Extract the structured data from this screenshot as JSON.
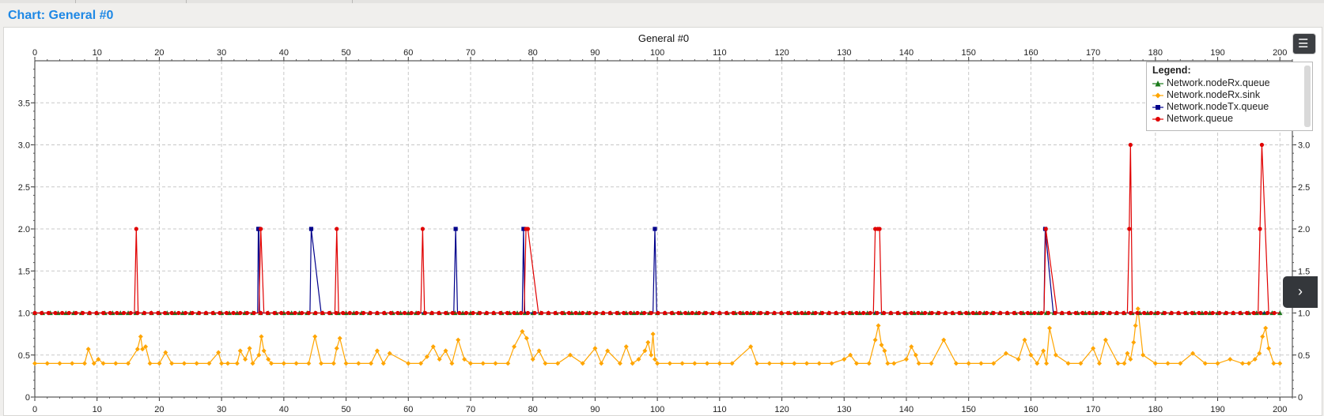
{
  "window": {
    "title": "Chart: General  #0"
  },
  "controls": {
    "legend_toggle_icon": "list-icon",
    "side_panel_icon": "chevron-right-icon"
  },
  "colors": {
    "rx_queue": "#1a7a1a",
    "rx_sink": "#ffa500",
    "tx_queue": "#00008b",
    "queue": "#e00000",
    "grid": "#c8c8c8"
  },
  "chart_data": {
    "type": "line",
    "title": "General  #0",
    "xlabel": "",
    "ylabel": "",
    "xlim": [
      0,
      202
    ],
    "ylim": [
      0,
      4
    ],
    "x_ticks": [
      0,
      10,
      20,
      30,
      40,
      50,
      60,
      70,
      80,
      90,
      100,
      110,
      120,
      130,
      140,
      150,
      160,
      170,
      180,
      190,
      200
    ],
    "y_ticks": [
      "0",
      "0.5",
      "1.0",
      "1.5",
      "2.0",
      "2.5",
      "3.0",
      "3.5"
    ],
    "grid": true,
    "legend_title": "Legend:",
    "legend_position": "top-right",
    "series": [
      {
        "name": "Network.nodeRx.queue",
        "marker": "triangle",
        "color": "#1a7a1a",
        "x": [
          0,
          200
        ],
        "y": [
          1.0,
          1.0
        ]
      },
      {
        "name": "Network.nodeRx.sink",
        "marker": "diamond",
        "color": "#ffa500",
        "x": [
          0,
          2,
          4,
          6,
          8,
          8.6,
          9.5,
          10.2,
          11,
          13,
          15,
          16.5,
          17,
          17.3,
          17.8,
          18.5,
          20,
          21,
          22,
          24,
          26,
          28,
          29.5,
          30,
          31,
          32.5,
          33,
          33.8,
          34.5,
          35,
          36,
          36.4,
          36.8,
          37.5,
          38,
          40,
          42,
          44,
          45,
          46,
          48,
          48.5,
          49,
          50,
          52,
          54,
          55,
          56,
          57,
          60,
          62,
          63,
          64,
          65,
          66,
          67,
          68,
          69,
          70,
          72,
          74,
          76,
          77,
          78.3,
          79,
          80,
          81,
          82,
          84,
          86,
          88,
          90,
          91,
          92,
          94,
          95,
          96,
          97,
          98,
          98.5,
          99,
          99.3,
          99.6,
          100,
          102,
          104,
          106,
          108,
          110,
          112,
          115,
          116,
          118,
          120,
          122,
          124,
          126,
          128,
          130,
          131,
          132,
          134,
          135,
          135.5,
          136,
          136.5,
          137,
          138,
          140,
          140.8,
          141.5,
          142,
          144,
          146,
          148,
          150,
          152,
          154,
          156,
          158,
          159,
          160,
          161,
          162,
          162.5,
          163,
          164,
          166,
          168,
          170,
          171,
          172,
          174,
          175,
          175.5,
          176,
          176.5,
          176.8,
          177.2,
          178,
          180,
          182,
          184,
          186,
          188,
          190,
          192,
          194,
          195,
          196,
          196.7,
          197.2,
          197.7,
          198.2,
          199,
          200
        ],
        "y": [
          0.4,
          0.4,
          0.4,
          0.4,
          0.4,
          0.57,
          0.4,
          0.45,
          0.4,
          0.4,
          0.4,
          0.57,
          0.72,
          0.57,
          0.6,
          0.4,
          0.4,
          0.53,
          0.4,
          0.4,
          0.4,
          0.4,
          0.53,
          0.4,
          0.4,
          0.4,
          0.55,
          0.45,
          0.58,
          0.4,
          0.5,
          0.72,
          0.55,
          0.45,
          0.4,
          0.4,
          0.4,
          0.4,
          0.72,
          0.4,
          0.4,
          0.58,
          0.7,
          0.4,
          0.4,
          0.4,
          0.55,
          0.4,
          0.52,
          0.4,
          0.4,
          0.48,
          0.6,
          0.45,
          0.55,
          0.4,
          0.68,
          0.45,
          0.4,
          0.4,
          0.4,
          0.4,
          0.6,
          0.78,
          0.7,
          0.45,
          0.55,
          0.4,
          0.4,
          0.5,
          0.4,
          0.58,
          0.4,
          0.55,
          0.4,
          0.6,
          0.4,
          0.45,
          0.55,
          0.65,
          0.5,
          0.75,
          0.45,
          0.4,
          0.4,
          0.4,
          0.4,
          0.4,
          0.4,
          0.4,
          0.6,
          0.4,
          0.4,
          0.4,
          0.4,
          0.4,
          0.4,
          0.4,
          0.45,
          0.5,
          0.4,
          0.4,
          0.68,
          0.85,
          0.62,
          0.55,
          0.4,
          0.4,
          0.45,
          0.6,
          0.5,
          0.4,
          0.4,
          0.68,
          0.4,
          0.4,
          0.4,
          0.4,
          0.52,
          0.45,
          0.68,
          0.5,
          0.4,
          0.55,
          0.4,
          0.82,
          0.5,
          0.4,
          0.4,
          0.58,
          0.4,
          0.68,
          0.4,
          0.4,
          0.52,
          0.45,
          0.65,
          0.85,
          1.05,
          0.5,
          0.4,
          0.4,
          0.4,
          0.52,
          0.4,
          0.4,
          0.45,
          0.4,
          0.4,
          0.45,
          0.52,
          0.72,
          0.82,
          0.58,
          0.4,
          0.4
        ]
      },
      {
        "name": "Network.nodeTx.queue",
        "marker": "square",
        "color": "#00008b",
        "x": [
          0,
          35.8,
          35.9,
          36.0,
          36.1,
          44.2,
          44.4,
          46.0,
          46.2,
          67.3,
          67.6,
          67.9,
          78.3,
          78.5,
          78.7,
          99.3,
          99.6,
          99.9,
          162.1,
          162.3,
          163.6,
          163.8,
          200
        ],
        "y": [
          1.0,
          1.0,
          2.0,
          2.0,
          1.0,
          1.0,
          2.0,
          1.0,
          1.0,
          1.0,
          2.0,
          1.0,
          1.0,
          2.0,
          1.0,
          1.0,
          2.0,
          1.0,
          1.0,
          2.0,
          1.0,
          1.0,
          1.0
        ]
      },
      {
        "name": "Network.queue",
        "marker": "circle",
        "color": "#e00000",
        "x": [
          0,
          16.0,
          16.3,
          16.6,
          36.0,
          36.3,
          36.8,
          48.2,
          48.5,
          48.8,
          62.0,
          62.3,
          62.6,
          78.6,
          78.9,
          79.2,
          80.9,
          134.7,
          135.0,
          135.4,
          135.7,
          136.0,
          162.1,
          162.4,
          164.2,
          175.5,
          175.8,
          176.0,
          176.3,
          196.5,
          196.8,
          197.1,
          198.2,
          200
        ],
        "y": [
          1.0,
          1.0,
          2.0,
          1.0,
          1.0,
          2.0,
          1.0,
          1.0,
          2.0,
          1.0,
          1.0,
          2.0,
          1.0,
          1.0,
          2.0,
          2.0,
          1.0,
          1.0,
          2.0,
          2.0,
          2.0,
          1.0,
          1.0,
          2.0,
          1.0,
          1.0,
          2.0,
          3.0,
          1.0,
          1.0,
          2.0,
          3.0,
          1.0,
          1.0
        ]
      }
    ]
  }
}
